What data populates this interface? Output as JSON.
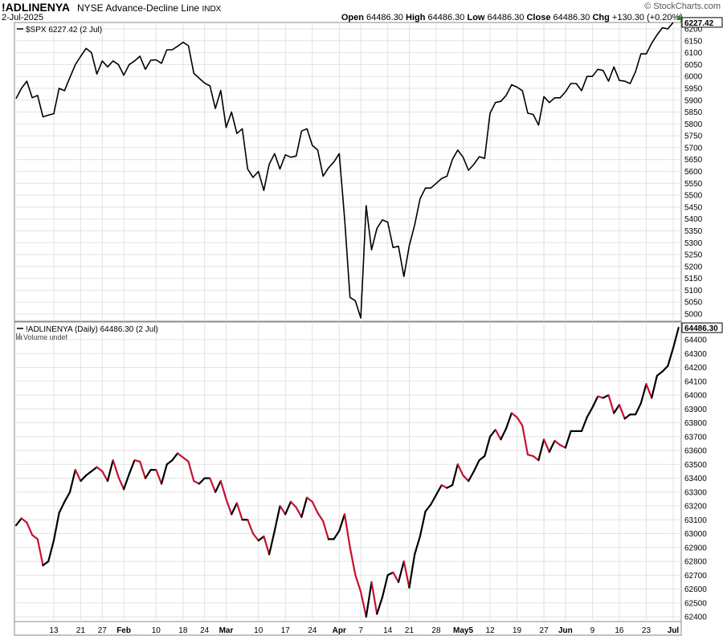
{
  "header": {
    "symbol": "!ADLINENYA",
    "name": "NYSE Advance-Decline Line",
    "exchange": "INDX",
    "date": "2-Jul-2025",
    "watermark": "© StockCharts.com",
    "open_label": "Open",
    "open": "64486.30",
    "high_label": "High",
    "high": "64486.30",
    "low_label": "Low",
    "low": "64486.30",
    "close_label": "Close",
    "close": "64486.30",
    "chg_label": "Chg",
    "chg": "+130.30 (+0.20%)",
    "chg_color": "#2a8a2a"
  },
  "chart_data": [
    {
      "type": "line",
      "legend": "$SPX 6227.42 (2 Jul)",
      "last_value_label": "6227.42",
      "line_color": "#000000",
      "ylim": [
        4960,
        6240
      ],
      "y_ticks": [
        5000,
        5050,
        5100,
        5150,
        5200,
        5250,
        5300,
        5350,
        5400,
        5450,
        5500,
        5550,
        5600,
        5650,
        5700,
        5750,
        5800,
        5850,
        5900,
        5950,
        6000,
        6050,
        6100,
        6150,
        6200
      ],
      "grid": true,
      "values": [
        5907,
        5950,
        5980,
        5910,
        5920,
        5830,
        5837,
        5843,
        5950,
        5940,
        5995,
        6050,
        6085,
        6118,
        6100,
        6010,
        6065,
        6040,
        6065,
        6050,
        6005,
        6050,
        6065,
        6085,
        6030,
        6068,
        6070,
        6055,
        6112,
        6112,
        6127,
        6144,
        6129,
        6013,
        5992,
        5972,
        5960,
        5865,
        5941,
        5785,
        5850,
        5760,
        5780,
        5610,
        5575,
        5600,
        5520,
        5630,
        5675,
        5610,
        5670,
        5660,
        5665,
        5770,
        5780,
        5710,
        5690,
        5580,
        5615,
        5640,
        5675,
        5400,
        5070,
        5055,
        4983,
        5456,
        5270,
        5360,
        5396,
        5387,
        5280,
        5285,
        5158,
        5288,
        5375,
        5485,
        5530,
        5530,
        5550,
        5570,
        5580,
        5650,
        5690,
        5660,
        5605,
        5630,
        5662,
        5655,
        5845,
        5890,
        5895,
        5920,
        5965,
        5955,
        5940,
        5845,
        5840,
        5795,
        5915,
        5890,
        5910,
        5910,
        5935,
        5970,
        5970,
        5940,
        6000,
        6000,
        6030,
        6025,
        5980,
        6040,
        5983,
        5980,
        5970,
        6020,
        6095,
        6095,
        6140,
        6175,
        6205,
        6200,
        6227.42
      ]
    },
    {
      "type": "line",
      "legend": "!ADLINENYA (Daily) 64486.30 (2 Jul)",
      "sublegend": "Volume undef",
      "last_value_label": "64486.30",
      "up_color": "#000000",
      "down_color": "#c8102e",
      "ylim": [
        62370,
        64530
      ],
      "y_ticks": [
        62400,
        62500,
        62600,
        62700,
        62800,
        62900,
        63000,
        63100,
        63200,
        63300,
        63400,
        63500,
        63600,
        63700,
        63800,
        63900,
        64000,
        64100,
        64200,
        64300,
        64400
      ],
      "grid": true,
      "values": [
        63060,
        63110,
        63080,
        62990,
        62960,
        62770,
        62800,
        62950,
        63150,
        63230,
        63300,
        63460,
        63380,
        63420,
        63450,
        63480,
        63450,
        63380,
        63530,
        63410,
        63320,
        63430,
        63530,
        63520,
        63400,
        63460,
        63460,
        63360,
        63500,
        63530,
        63580,
        63550,
        63520,
        63380,
        63360,
        63400,
        63400,
        63300,
        63380,
        63250,
        63140,
        63220,
        63100,
        63100,
        63000,
        62950,
        62980,
        62850,
        63020,
        63200,
        63140,
        63230,
        63190,
        63120,
        63260,
        63230,
        63150,
        63090,
        62960,
        62960,
        63020,
        63140,
        62900,
        62700,
        62580,
        62400,
        62650,
        62420,
        62540,
        62700,
        62720,
        62650,
        62800,
        62610,
        62850,
        62980,
        63160,
        63210,
        63280,
        63350,
        63330,
        63350,
        63500,
        63420,
        63380,
        63450,
        63530,
        63560,
        63700,
        63750,
        63680,
        63760,
        63870,
        63840,
        63780,
        63570,
        63560,
        63530,
        63680,
        63590,
        63670,
        63640,
        63620,
        63740,
        63740,
        63740,
        63840,
        63910,
        63990,
        63980,
        64000,
        63870,
        63930,
        63830,
        63860,
        63860,
        63940,
        64080,
        63980,
        64140,
        64170,
        64210,
        64340,
        64486.3
      ]
    }
  ],
  "x_axis": {
    "tick_labels": [
      {
        "label": "13",
        "index": 7
      },
      {
        "label": "21",
        "index": 12
      },
      {
        "label": "27",
        "index": 16
      },
      {
        "label": "Feb",
        "index": 20,
        "bold": true
      },
      {
        "label": "10",
        "index": 26
      },
      {
        "label": "18",
        "index": 31
      },
      {
        "label": "24",
        "index": 35
      },
      {
        "label": "Mar",
        "index": 39,
        "bold": true
      },
      {
        "label": "10",
        "index": 45
      },
      {
        "label": "17",
        "index": 50
      },
      {
        "label": "24",
        "index": 55
      },
      {
        "label": "Apr",
        "index": 60,
        "bold": true
      },
      {
        "label": "7",
        "index": 64
      },
      {
        "label": "14",
        "index": 69
      },
      {
        "label": "21",
        "index": 73
      },
      {
        "label": "28",
        "index": 78
      },
      {
        "label": "May5",
        "index": 83,
        "bold": true
      },
      {
        "label": "12",
        "index": 88
      },
      {
        "label": "19",
        "index": 93
      },
      {
        "label": "27",
        "index": 98
      },
      {
        "label": "Jun",
        "index": 102,
        "bold": true
      },
      {
        "label": "9",
        "index": 107
      },
      {
        "label": "16",
        "index": 112
      },
      {
        "label": "23",
        "index": 117
      },
      {
        "label": "Jul",
        "index": 122,
        "bold": true
      }
    ]
  }
}
